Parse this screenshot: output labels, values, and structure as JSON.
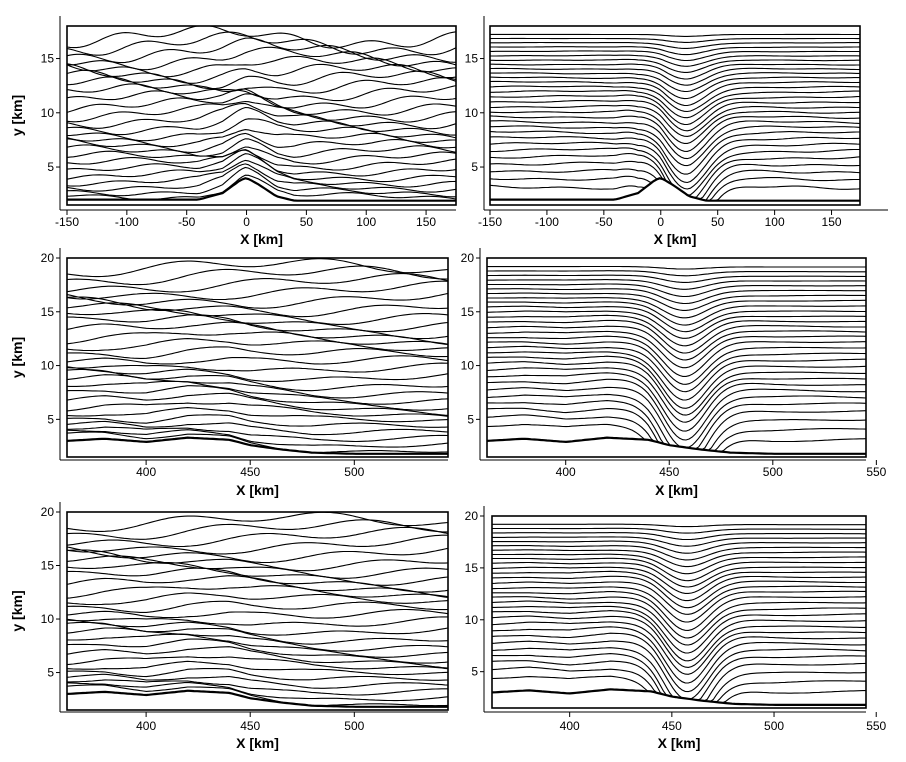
{
  "figure": {
    "panels_caption": "",
    "colors": {
      "line": "#000000",
      "background": "#ffffff"
    }
  },
  "chart_data": [
    {
      "id": "p1",
      "type": "contour",
      "xlabel": "X [km]",
      "ylabel": "y [km]",
      "xlim": [
        -150,
        175
      ],
      "ylim": [
        1.5,
        18
      ],
      "xticks": [
        -150,
        -100,
        -50,
        0,
        50,
        100,
        150
      ],
      "yticks": [
        5,
        10,
        15
      ],
      "ground": [
        [
          -150,
          2
        ],
        [
          -40,
          2
        ],
        [
          -20,
          2.6
        ],
        [
          -5,
          3.8
        ],
        [
          0,
          4.0
        ],
        [
          10,
          3.4
        ],
        [
          25,
          2.3
        ],
        [
          40,
          1.9
        ],
        [
          175,
          1.9
        ]
      ],
      "contour_levels": 26,
      "show_ylabel": true,
      "show_xlabel": true
    },
    {
      "id": "p2",
      "type": "contour",
      "xlabel": "X [km]",
      "ylabel": "",
      "xlim": [
        -150,
        175
      ],
      "ylim": [
        1.5,
        18
      ],
      "xticks": [
        -150,
        -100,
        -50,
        0,
        50,
        100,
        150
      ],
      "yticks": [
        5,
        10,
        15
      ],
      "ground": [
        [
          -150,
          2
        ],
        [
          -40,
          2
        ],
        [
          -20,
          2.6
        ],
        [
          -5,
          3.8
        ],
        [
          0,
          4.0
        ],
        [
          10,
          3.4
        ],
        [
          25,
          2.3
        ],
        [
          40,
          1.9
        ],
        [
          175,
          1.9
        ]
      ],
      "contour_levels": 30,
      "show_ylabel": false,
      "show_xlabel": true
    },
    {
      "id": "p3",
      "type": "contour",
      "xlabel": "X [km]",
      "ylabel": "y [km]",
      "xlim": [
        362,
        545
      ],
      "ylim": [
        1.5,
        20
      ],
      "xticks": [
        400,
        450,
        500
      ],
      "yticks": [
        5,
        10,
        15,
        20
      ],
      "ground": [
        [
          362,
          3.0
        ],
        [
          380,
          3.2
        ],
        [
          400,
          2.9
        ],
        [
          420,
          3.3
        ],
        [
          440,
          3.1
        ],
        [
          450,
          2.6
        ],
        [
          465,
          2.2
        ],
        [
          480,
          1.9
        ],
        [
          500,
          1.8
        ],
        [
          545,
          1.8
        ]
      ],
      "contour_levels": 28,
      "show_ylabel": true,
      "show_xlabel": true
    },
    {
      "id": "p4",
      "type": "contour",
      "xlabel": "X [km]",
      "ylabel": "",
      "xlim": [
        362,
        545
      ],
      "ylim": [
        1.5,
        20
      ],
      "xticks": [
        400,
        450,
        500,
        550
      ],
      "yticks": [
        5,
        10,
        15,
        20
      ],
      "ground": [
        [
          362,
          3.0
        ],
        [
          380,
          3.2
        ],
        [
          400,
          2.9
        ],
        [
          420,
          3.3
        ],
        [
          440,
          3.1
        ],
        [
          450,
          2.6
        ],
        [
          465,
          2.2
        ],
        [
          480,
          1.9
        ],
        [
          500,
          1.8
        ],
        [
          545,
          1.8
        ]
      ],
      "contour_levels": 30,
      "show_ylabel": false,
      "show_xlabel": true
    },
    {
      "id": "p5",
      "type": "contour",
      "xlabel": "X [km]",
      "ylabel": "y [km]",
      "xlim": [
        362,
        545
      ],
      "ylim": [
        1.5,
        20
      ],
      "xticks": [
        400,
        450,
        500
      ],
      "yticks": [
        5,
        10,
        15,
        20
      ],
      "ground": [
        [
          362,
          3.0
        ],
        [
          380,
          3.2
        ],
        [
          400,
          2.9
        ],
        [
          420,
          3.3
        ],
        [
          440,
          3.1
        ],
        [
          450,
          2.6
        ],
        [
          465,
          2.2
        ],
        [
          480,
          1.9
        ],
        [
          500,
          1.8
        ],
        [
          545,
          1.8
        ]
      ],
      "contour_levels": 28,
      "show_ylabel": true,
      "show_xlabel": true
    },
    {
      "id": "p6",
      "type": "contour",
      "xlabel": "X [km]",
      "ylabel": "",
      "xlim": [
        362,
        545
      ],
      "ylim": [
        1.5,
        20
      ],
      "xticks": [
        400,
        450,
        500,
        550
      ],
      "yticks": [
        5,
        10,
        15,
        20
      ],
      "ground": [
        [
          362,
          3.0
        ],
        [
          380,
          3.2
        ],
        [
          400,
          2.9
        ],
        [
          420,
          3.3
        ],
        [
          440,
          3.1
        ],
        [
          450,
          2.6
        ],
        [
          465,
          2.2
        ],
        [
          480,
          1.9
        ],
        [
          500,
          1.8
        ],
        [
          545,
          1.8
        ]
      ],
      "contour_levels": 30,
      "show_ylabel": false,
      "show_xlabel": true
    }
  ]
}
